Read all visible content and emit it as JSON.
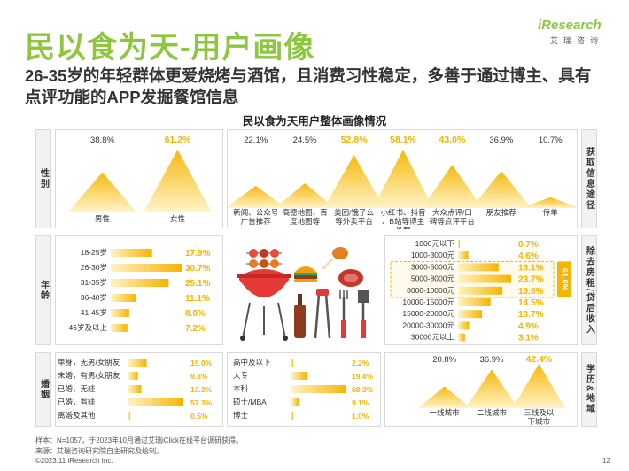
{
  "header": {
    "title": "民以食为天-用户画像",
    "subtitle": "26-35岁的年轻群体更爱烧烤与酒馆，且消费习性稳定，多善于通过博主、具有点评功能的APP发掘餐馆信息",
    "logo_text": "iResearch",
    "logo_sub": "艾瑞咨询",
    "chart_title": "民以食为天用户整体画像情况"
  },
  "side_labels": {
    "gender": "性别",
    "age": "年龄",
    "marriage": "婚姻",
    "channel": "获取信息途径",
    "income": "除去房租/贷后收入",
    "education": "学历&地域"
  },
  "chart_data": [
    {
      "type": "area",
      "id": "gender",
      "categories": [
        "男性",
        "女性"
      ],
      "values": [
        38.8,
        61.2
      ],
      "value_labels": [
        "38.8%",
        "61.2%"
      ],
      "highlight_index": 1
    },
    {
      "type": "area",
      "id": "channel",
      "categories": [
        "新闻、公众号广告推荐",
        "高德地图、百度地图等",
        "美团/饿了么等外卖平台",
        "小红书、抖音、B站等博主推荐",
        "大众点评/口碑等点评平台",
        "朋友推荐",
        "传单"
      ],
      "values": [
        22.1,
        24.5,
        52.8,
        58.1,
        43.0,
        36.9,
        10.7
      ],
      "value_labels": [
        "22.1%",
        "24.5%",
        "52.8%",
        "58.1%",
        "43.0%",
        "36.9%",
        "10.7%"
      ],
      "highlight_indices": [
        2,
        3,
        4
      ]
    },
    {
      "type": "bar",
      "id": "age",
      "categories": [
        "18-25岁",
        "26-30岁",
        "31-35岁",
        "36-40岁",
        "41-45岁",
        "46岁及以上"
      ],
      "values": [
        17.9,
        30.7,
        25.1,
        11.1,
        8.0,
        7.2
      ],
      "value_labels": [
        "17.9%",
        "30.7%",
        "25.1%",
        "11.1%",
        "8.0%",
        "7.2%"
      ]
    },
    {
      "type": "bar",
      "id": "income",
      "categories": [
        "1000元以下",
        "1000-3000元",
        "3000-5000元",
        "5000-8000元",
        "8000-10000元",
        "10000-15000元",
        "15000-20000元",
        "20000-30000元",
        "30000元以上"
      ],
      "values": [
        0.7,
        4.6,
        18.1,
        23.7,
        19.8,
        14.5,
        10.7,
        4.9,
        3.1
      ],
      "value_labels": [
        "0.7%",
        "4.6%",
        "18.1%",
        "23.7%",
        "19.8%",
        "14.5%",
        "10.7%",
        "4.9%",
        "3.1%"
      ],
      "group_highlight": {
        "range": [
          2,
          4
        ],
        "label": "61.6%"
      }
    },
    {
      "type": "bar",
      "id": "marriage",
      "categories": [
        "单身，无男/女朋友",
        "未婚，有男/女朋友",
        "已婚，无娃",
        "已婚，有娃",
        "离婚及其他"
      ],
      "values": [
        19.0,
        9.8,
        13.3,
        57.3,
        0.5
      ],
      "value_labels": [
        "19.0%",
        "9.8%",
        "13.3%",
        "57.3%",
        "0.5%"
      ]
    },
    {
      "type": "bar",
      "id": "education",
      "categories": [
        "高中及以下",
        "大专",
        "本科",
        "硕士/MBA",
        "博士"
      ],
      "values": [
        2.2,
        19.4,
        68.3,
        9.1,
        1.0
      ],
      "value_labels": [
        "2.2%",
        "19.4%",
        "68.3%",
        "9.1%",
        "1.0%"
      ]
    },
    {
      "type": "area",
      "id": "city",
      "categories": [
        "一线城市",
        "二线城市",
        "三线及以下城市"
      ],
      "values": [
        20.8,
        36.9,
        42.4
      ],
      "value_labels": [
        "20.8%",
        "36.9%",
        "42.4%"
      ],
      "highlight_index": 2
    }
  ],
  "colors": {
    "accent_green": "#8dc63f",
    "bar_yellow": "#f5b400",
    "bar_light": "#ffe9a8"
  },
  "footer": {
    "sample": "样本：N=1057，于2023年10月通过艾瑞iClick在线平台调研获得。",
    "source": "来源：艾瑞咨询研究院自主研究及绘制。",
    "copyright": "©2023.11 iResearch Inc.",
    "page": "12"
  }
}
